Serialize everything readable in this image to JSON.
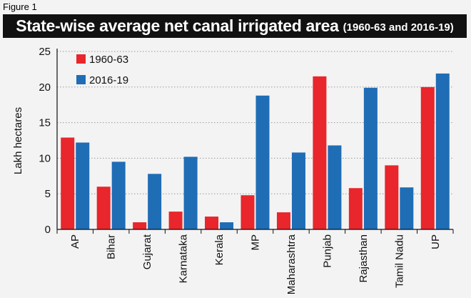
{
  "figure_label": "Figure 1",
  "title": "State-wise average net canal irrigated area",
  "subtitle": "(1960-63 and 2016-19)",
  "chart_data": {
    "type": "bar",
    "title": "State-wise average net canal irrigated area",
    "subtitle": "(1960-63 and 2016-19)",
    "xlabel": "",
    "ylabel": "Lakh hectares",
    "ylim": [
      0,
      25
    ],
    "yticks": [
      0,
      5,
      10,
      15,
      20,
      25
    ],
    "grid": true,
    "legend_position": "top-left",
    "categories": [
      "AP",
      "Bihar",
      "Gujarat",
      "Karnataka",
      "Kerala",
      "MP",
      "Maharashtra",
      "Punjab",
      "Rajasthan",
      "Tamil Nadu",
      "UP"
    ],
    "series": [
      {
        "name": "1960-63",
        "color": "#e8262b",
        "values": [
          12.9,
          6.0,
          1.0,
          2.5,
          1.8,
          4.8,
          2.4,
          21.5,
          5.8,
          9.0,
          20.0
        ]
      },
      {
        "name": "2016-19",
        "color": "#1f6db5",
        "values": [
          12.2,
          9.5,
          7.8,
          10.2,
          1.0,
          18.8,
          10.8,
          11.8,
          19.9,
          5.9,
          21.9
        ]
      }
    ]
  }
}
